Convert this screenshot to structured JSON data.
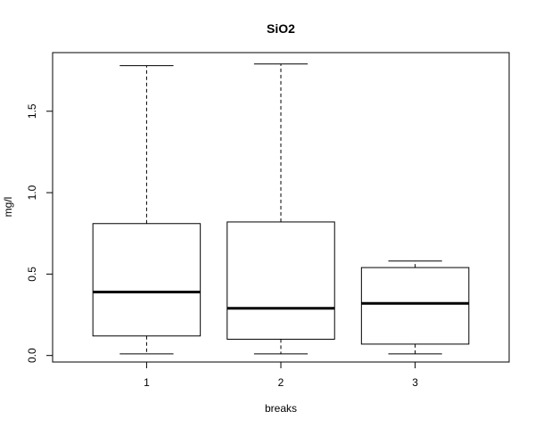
{
  "chart_data": {
    "type": "boxplot",
    "title": "SiO2",
    "xlabel": "breaks",
    "ylabel": "mg/l",
    "categories": [
      "1",
      "2",
      "3"
    ],
    "ylim": [
      -0.04,
      1.86
    ],
    "yticks": [
      "0.0",
      "0.5",
      "1.0",
      "1.5"
    ],
    "boxes": [
      {
        "label": "1",
        "min": 0.01,
        "q1": 0.12,
        "median": 0.39,
        "q3": 0.81,
        "max": 1.78
      },
      {
        "label": "2",
        "min": 0.01,
        "q1": 0.1,
        "median": 0.29,
        "q3": 0.82,
        "max": 1.79
      },
      {
        "label": "3",
        "min": 0.01,
        "q1": 0.07,
        "median": 0.32,
        "q3": 0.54,
        "max": 0.58
      }
    ],
    "grid": false,
    "legend": "none"
  }
}
